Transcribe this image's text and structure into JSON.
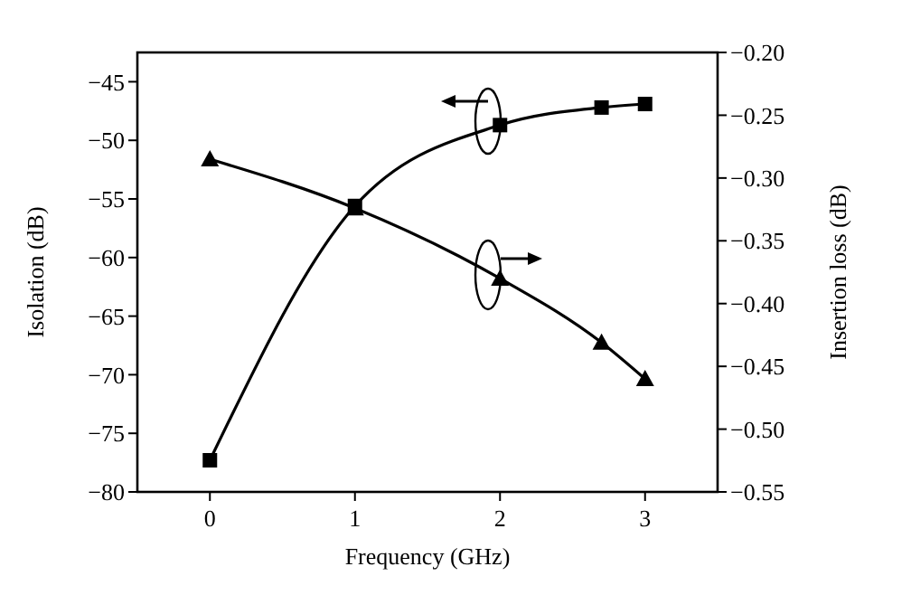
{
  "chart_data": {
    "type": "line",
    "xlabel": "Frequency (GHz)",
    "ylabel": "Isolation (dB)",
    "y2label": "Insertion loss (dB)",
    "x": [
      0,
      1,
      2,
      2.7,
      3
    ],
    "series": [
      {
        "color": "#000000",
        "marker": "square",
        "values": [
          -77.3,
          -55.6,
          -48.7,
          -47.2,
          -46.9
        ]
      },
      {
        "color": "#000000",
        "marker": "triangle",
        "axis": "y2",
        "values": [
          -0.285,
          -0.324,
          -0.38,
          -0.431,
          -0.46
        ]
      }
    ],
    "xlim": [
      -0.5,
      3.5
    ],
    "xticks": [
      0,
      1,
      2,
      3
    ],
    "ylim": [
      -80,
      -42.5
    ],
    "yticks": [
      -80,
      -75,
      -70,
      -65,
      -60,
      -55,
      -50,
      -45
    ],
    "y2lim": [
      -0.55,
      -0.2
    ],
    "y2ticks": [
      {
        "value": -0.55,
        "label": "−0.55"
      },
      {
        "value": -0.5,
        "label": "−0.50"
      },
      {
        "value": -0.45,
        "label": "−0.45"
      },
      {
        "value": -0.4,
        "label": "−0.40"
      },
      {
        "value": -0.35,
        "label": "−0.35"
      },
      {
        "value": -0.3,
        "label": "−0.30"
      },
      {
        "value": -0.25,
        "label": "−0.25"
      },
      {
        "value": -0.2,
        "label": "−0.20"
      }
    ],
    "grid": false,
    "line_style": "solid"
  }
}
